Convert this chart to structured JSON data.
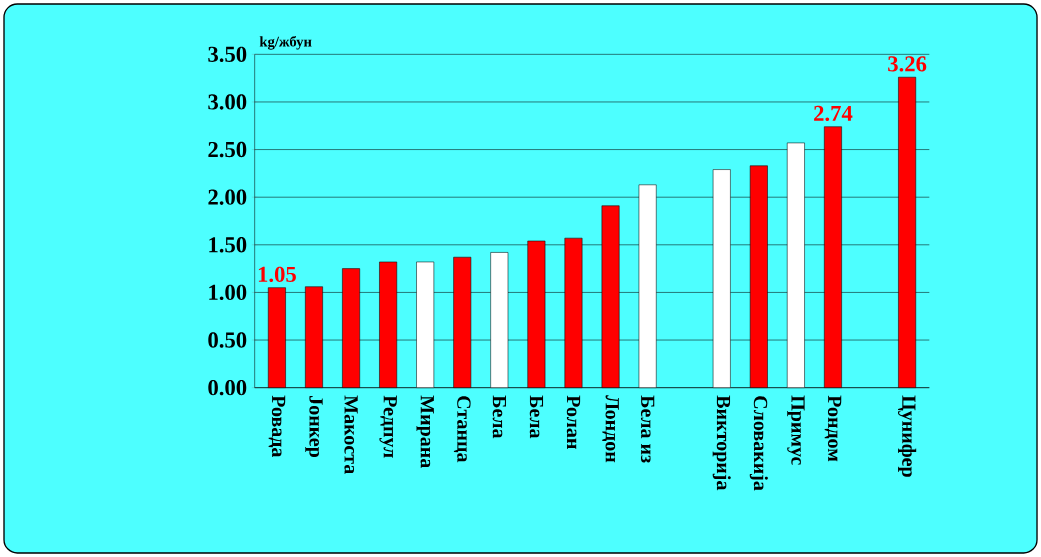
{
  "chart_data": {
    "type": "bar",
    "ylabel": "kg/жбун",
    "categories": [
      "Ровада",
      "Јонкер",
      "Макоста",
      "Редпул",
      "Мирана",
      "Станца",
      "Бела",
      "Бела",
      "Ролан",
      "Лондон",
      "Бела из",
      null,
      "Викторија",
      "Словакија",
      "Примус",
      "Рондом",
      null,
      "Цунифер"
    ],
    "values": [
      1.05,
      1.06,
      1.25,
      1.32,
      1.32,
      1.37,
      1.42,
      1.54,
      1.57,
      1.91,
      2.13,
      null,
      2.29,
      2.33,
      2.57,
      2.74,
      null,
      3.26
    ],
    "colors": [
      "#ff0000",
      "#ff0000",
      "#ff0000",
      "#ff0000",
      "#ffffff",
      "#ff0000",
      "#ffffff",
      "#ff0000",
      "#ff0000",
      "#ff0000",
      "#ffffff",
      null,
      "#ffffff",
      "#ff0000",
      "#ffffff",
      "#ff0000",
      null,
      "#ff0000"
    ],
    "value_labels": [
      "1.05",
      null,
      null,
      null,
      null,
      null,
      null,
      null,
      null,
      null,
      null,
      null,
      null,
      null,
      null,
      "2.74",
      null,
      "3.26"
    ],
    "ylim": [
      0,
      3.5
    ],
    "yticks": [
      {
        "value": 0,
        "label": "0.00"
      },
      {
        "value": 0.5,
        "label": "0.50"
      },
      {
        "value": 1,
        "label": "1.00"
      },
      {
        "value": 1.5,
        "label": "1.50"
      },
      {
        "value": 2,
        "label": "2.00"
      },
      {
        "value": 2.5,
        "label": "2.50"
      },
      {
        "value": 3,
        "label": "3.00"
      },
      {
        "value": 3.5,
        "label": "3.50"
      }
    ],
    "grid": "y"
  }
}
